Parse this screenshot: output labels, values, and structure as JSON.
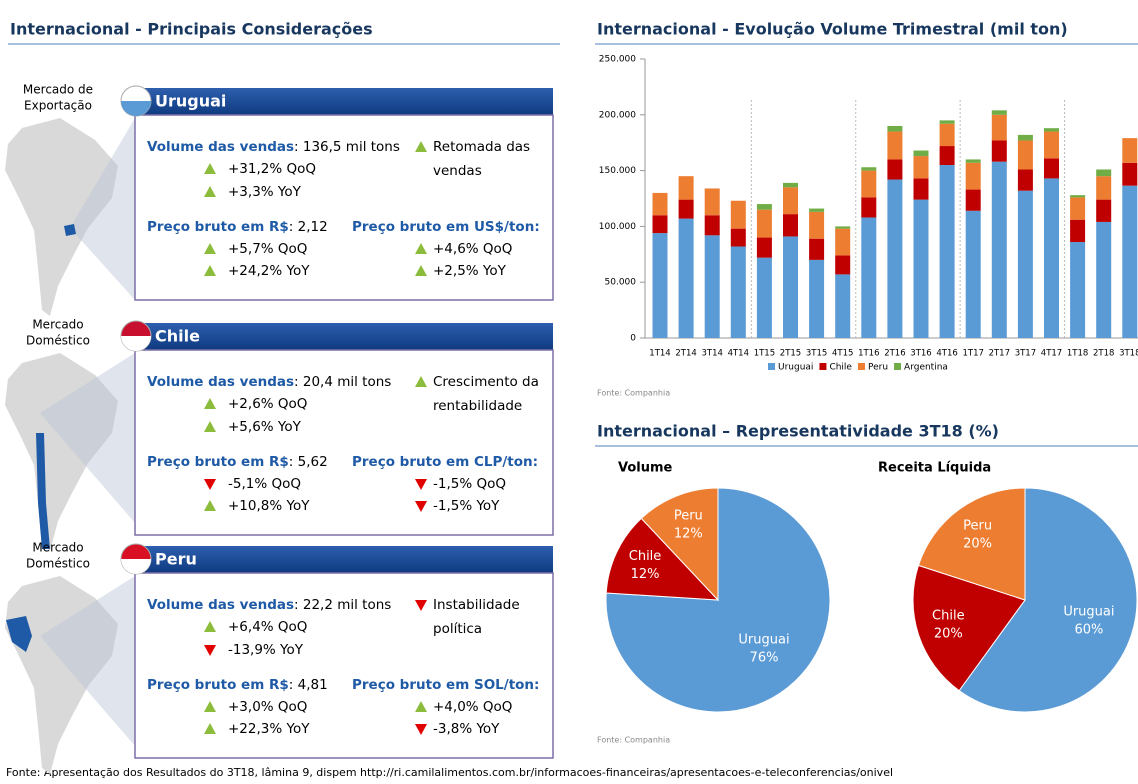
{
  "left_panel": {
    "title": "Internacional - Principais Considerações",
    "blocks": [
      {
        "market": [
          "Mercado de",
          "Exportação"
        ],
        "country": "Uruguai",
        "volume": {
          "label": "Volume das vendas",
          "value": ": 136,5 mil tons",
          "items": [
            {
              "dir": "up",
              "text": "+31,2% QoQ"
            },
            {
              "dir": "up",
              "text": "+3,3% YoY"
            }
          ]
        },
        "note": {
          "dir": "up",
          "lines": [
            "Retomada das",
            "vendas"
          ]
        },
        "price_brl": {
          "label": "Preço bruto em R$",
          "value": ": 2,12",
          "items": [
            {
              "dir": "up",
              "text": "+5,7% QoQ"
            },
            {
              "dir": "up",
              "text": "+24,2% YoY"
            }
          ]
        },
        "price_local": {
          "label": "Preço bruto em US$/ton:",
          "items": [
            {
              "dir": "up",
              "text": "+4,6% QoQ"
            },
            {
              "dir": "up",
              "text": "+2,5% YoY"
            }
          ]
        }
      },
      {
        "market": [
          "Mercado",
          "Doméstico"
        ],
        "country": "Chile",
        "volume": {
          "label": "Volume das vendas",
          "value": ": 20,4 mil tons",
          "items": [
            {
              "dir": "up",
              "text": "+2,6% QoQ"
            },
            {
              "dir": "up",
              "text": "+5,6% YoY"
            }
          ]
        },
        "note": {
          "dir": "up",
          "lines": [
            "Crescimento da",
            "rentabilidade"
          ]
        },
        "price_brl": {
          "label": "Preço bruto em R$",
          "value": ": 5,62",
          "items": [
            {
              "dir": "down",
              "text": "-5,1% QoQ"
            },
            {
              "dir": "up",
              "text": "+10,8% YoY"
            }
          ]
        },
        "price_local": {
          "label": "Preço bruto em CLP/ton:",
          "items": [
            {
              "dir": "down",
              "text": "-1,5% QoQ"
            },
            {
              "dir": "down",
              "text": "-1,5% YoY"
            }
          ]
        }
      },
      {
        "market": [
          "Mercado",
          "Doméstico"
        ],
        "country": "Peru",
        "volume": {
          "label": "Volume das vendas",
          "value": ": 22,2 mil tons",
          "items": [
            {
              "dir": "up",
              "text": "+6,4% QoQ"
            },
            {
              "dir": "down",
              "text": "-13,9% YoY"
            }
          ]
        },
        "note": {
          "dir": "down",
          "lines": [
            "Instabilidade",
            "política"
          ]
        },
        "price_brl": {
          "label": "Preço bruto em R$",
          "value": ": 4,81",
          "items": [
            {
              "dir": "up",
              "text": "+3,0% QoQ"
            },
            {
              "dir": "up",
              "text": "+22,3% YoY"
            }
          ]
        },
        "price_local": {
          "label": "Preço bruto em SOL/ton:",
          "items": [
            {
              "dir": "up",
              "text": "+4,0% QoQ"
            },
            {
              "dir": "down",
              "text": "-3,8% YoY"
            }
          ]
        }
      }
    ]
  },
  "pie_section": {
    "title": "Internacional – Representatividade 3T18 (%)",
    "source": "Fonte: Companhia"
  },
  "footer": "Fonte: Apresentação dos Resultados do 3T18, lâmina 9, dispem http://ri.camilalimentos.com.br/informacoes-financeiras/apresentacoes-e-teleconferencias/onivel",
  "chart_data": [
    {
      "type": "bar",
      "stacked": true,
      "title": "Internacional - Evolução Volume Trimestral (mil ton)",
      "source": "Fonte: Companhia",
      "legend": "bottom",
      "grid": false,
      "categories": [
        "1T14",
        "2T14",
        "3T14",
        "4T14",
        "1T15",
        "2T15",
        "3T15",
        "4T15",
        "1T16",
        "2T16",
        "3T16",
        "4T16",
        "1T17",
        "2T17",
        "3T17",
        "4T17",
        "1T18",
        "2T18",
        "3T18"
      ],
      "series": [
        {
          "name": "Uruguai",
          "color": "#5b9bd5",
          "values": [
            94000,
            107000,
            92000,
            82000,
            72000,
            91000,
            70000,
            57000,
            108000,
            142000,
            124000,
            155000,
            114000,
            158000,
            132000,
            143000,
            86000,
            104000,
            136500
          ]
        },
        {
          "name": "Chile",
          "color": "#c00000",
          "values": [
            16000,
            17000,
            18000,
            16000,
            18000,
            20000,
            19000,
            17000,
            18000,
            18000,
            19000,
            17000,
            19000,
            19000,
            19000,
            18000,
            20000,
            20000,
            20400
          ]
        },
        {
          "name": "Peru",
          "color": "#ed7d31",
          "values": [
            20000,
            21000,
            24000,
            25000,
            25000,
            24000,
            24000,
            24000,
            24000,
            25000,
            20000,
            20000,
            24000,
            23000,
            26000,
            24000,
            20000,
            21000,
            22200
          ]
        },
        {
          "name": "Argentina",
          "color": "#70ad47",
          "values": [
            0,
            0,
            0,
            0,
            5000,
            4000,
            3000,
            2000,
            3000,
            5000,
            5000,
            3000,
            3000,
            4000,
            5000,
            3000,
            2000,
            6000,
            0
          ]
        }
      ],
      "ylim": [
        0,
        250000
      ],
      "yticks": [
        0,
        {
          "value": 50000,
          "label": "50.000"
        },
        {
          "value": 100000,
          "label": "100.000"
        },
        {
          "value": 150000,
          "label": "150.000"
        },
        {
          "value": 200000,
          "label": "200.000"
        },
        {
          "value": 250000,
          "label": "250.000"
        }
      ]
    },
    {
      "type": "pie",
      "title": "Volume",
      "categories": [
        "Uruguai",
        "Chile",
        "Peru"
      ],
      "values": [
        76,
        12,
        12
      ],
      "value_labels": [
        "76%",
        "12%",
        "12%"
      ],
      "colors": [
        "#5b9bd5",
        "#c00000",
        "#ed7d31"
      ]
    },
    {
      "type": "pie",
      "title": "Receita Líquida",
      "categories": [
        "Uruguai",
        "Chile",
        "Peru"
      ],
      "values": [
        60,
        20,
        20
      ],
      "value_labels": [
        "60%",
        "20%",
        "20%"
      ],
      "colors": [
        "#5b9bd5",
        "#c00000",
        "#ed7d31"
      ]
    }
  ]
}
